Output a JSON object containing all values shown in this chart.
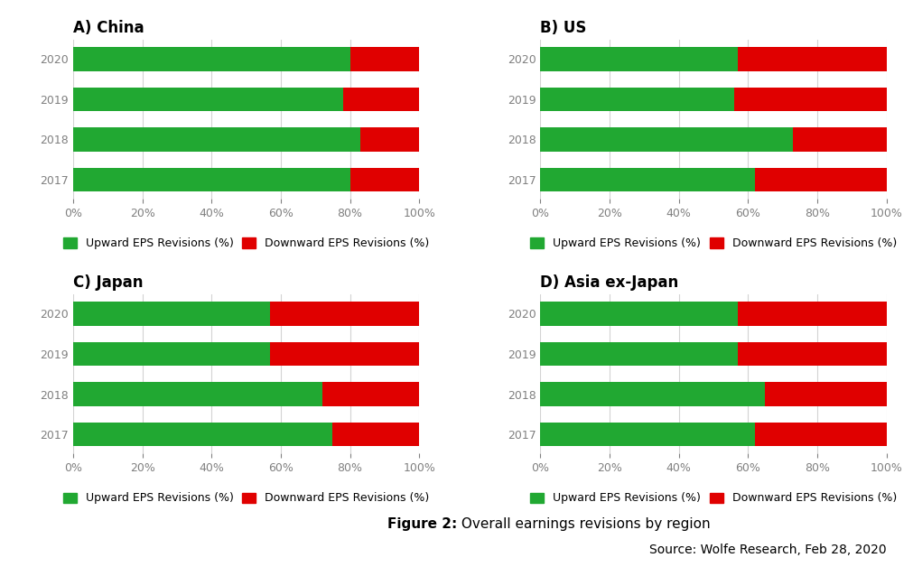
{
  "panels": [
    {
      "title": "A) China",
      "years": [
        "2020",
        "2019",
        "2018",
        "2017"
      ],
      "upward": [
        80,
        78,
        83,
        80
      ],
      "downward": [
        20,
        22,
        17,
        20
      ]
    },
    {
      "title": "B) US",
      "years": [
        "2020",
        "2019",
        "2018",
        "2017"
      ],
      "upward": [
        57,
        56,
        73,
        62
      ],
      "downward": [
        43,
        44,
        27,
        38
      ]
    },
    {
      "title": "C) Japan",
      "years": [
        "2020",
        "2019",
        "2018",
        "2017"
      ],
      "upward": [
        57,
        57,
        72,
        75
      ],
      "downward": [
        43,
        43,
        28,
        25
      ]
    },
    {
      "title": "D) Asia ex-Japan",
      "years": [
        "2020",
        "2019",
        "2018",
        "2017"
      ],
      "upward": [
        57,
        57,
        65,
        62
      ],
      "downward": [
        43,
        43,
        35,
        38
      ]
    }
  ],
  "green_color": "#21A832",
  "red_color": "#E00000",
  "background_color": "#FFFFFF",
  "figure_caption_bold": "Figure 2:",
  "figure_caption_normal": " Overall earnings revisions by region",
  "source_text": "Source: Wolfe Research, Feb 28, 2020",
  "legend_upward": "Upward EPS Revisions (%)",
  "legend_downward": "Downward EPS Revisions (%)",
  "title_fontsize": 12,
  "tick_fontsize": 9,
  "legend_fontsize": 9,
  "caption_fontsize": 11,
  "source_fontsize": 10
}
